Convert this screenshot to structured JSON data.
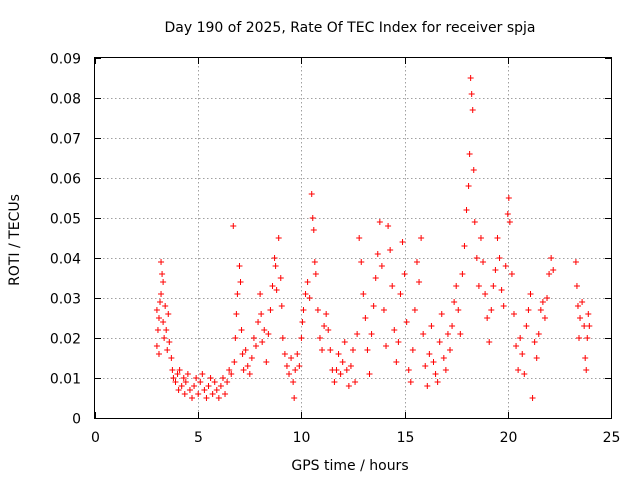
{
  "chart_data": {
    "type": "scatter",
    "title": "Day 190 of 2025, Rate Of TEC Index for receiver spja",
    "xlabel": "GPS time / hours",
    "ylabel": "ROTI / TECUs",
    "xlim": [
      0,
      25
    ],
    "ylim": [
      0,
      0.09
    ],
    "xticks": [
      "0",
      "5",
      "10",
      "15",
      "20",
      "25"
    ],
    "yticks": [
      "0",
      "0.01",
      "0.02",
      "0.03",
      "0.04",
      "0.05",
      "0.06",
      "0.07",
      "0.08",
      "0.09"
    ],
    "grid": true,
    "marker": "+",
    "color": "#ff0000",
    "points": [
      [
        3.0,
        0.027
      ],
      [
        3.0,
        0.018
      ],
      [
        3.05,
        0.022
      ],
      [
        3.1,
        0.025
      ],
      [
        3.1,
        0.016
      ],
      [
        3.15,
        0.029
      ],
      [
        3.2,
        0.031
      ],
      [
        3.2,
        0.039
      ],
      [
        3.25,
        0.036
      ],
      [
        3.3,
        0.034
      ],
      [
        3.3,
        0.024
      ],
      [
        3.35,
        0.02
      ],
      [
        3.4,
        0.028
      ],
      [
        3.45,
        0.022
      ],
      [
        3.5,
        0.017
      ],
      [
        3.55,
        0.026
      ],
      [
        3.6,
        0.019
      ],
      [
        3.7,
        0.015
      ],
      [
        3.75,
        0.012
      ],
      [
        3.8,
        0.01
      ],
      [
        3.9,
        0.009
      ],
      [
        4.0,
        0.011
      ],
      [
        4.05,
        0.007
      ],
      [
        4.1,
        0.012
      ],
      [
        4.2,
        0.008
      ],
      [
        4.3,
        0.01
      ],
      [
        4.35,
        0.006
      ],
      [
        4.4,
        0.009
      ],
      [
        4.5,
        0.011
      ],
      [
        4.6,
        0.007
      ],
      [
        4.7,
        0.005
      ],
      [
        4.8,
        0.008
      ],
      [
        4.9,
        0.01
      ],
      [
        5.0,
        0.006
      ],
      [
        5.1,
        0.009
      ],
      [
        5.2,
        0.011
      ],
      [
        5.3,
        0.007
      ],
      [
        5.4,
        0.005
      ],
      [
        5.5,
        0.008
      ],
      [
        5.6,
        0.01
      ],
      [
        5.7,
        0.006
      ],
      [
        5.8,
        0.009
      ],
      [
        5.9,
        0.007
      ],
      [
        6.0,
        0.005
      ],
      [
        6.1,
        0.008
      ],
      [
        6.2,
        0.01
      ],
      [
        6.3,
        0.006
      ],
      [
        6.4,
        0.009
      ],
      [
        6.5,
        0.012
      ],
      [
        6.6,
        0.011
      ],
      [
        6.7,
        0.048
      ],
      [
        6.75,
        0.014
      ],
      [
        6.8,
        0.02
      ],
      [
        6.85,
        0.026
      ],
      [
        6.9,
        0.031
      ],
      [
        7.0,
        0.038
      ],
      [
        7.05,
        0.034
      ],
      [
        7.1,
        0.022
      ],
      [
        7.15,
        0.016
      ],
      [
        7.2,
        0.012
      ],
      [
        7.3,
        0.017
      ],
      [
        7.4,
        0.013
      ],
      [
        7.5,
        0.011
      ],
      [
        7.6,
        0.015
      ],
      [
        7.7,
        0.02
      ],
      [
        7.8,
        0.018
      ],
      [
        7.9,
        0.024
      ],
      [
        8.0,
        0.031
      ],
      [
        8.05,
        0.026
      ],
      [
        8.1,
        0.019
      ],
      [
        8.2,
        0.022
      ],
      [
        8.3,
        0.014
      ],
      [
        8.4,
        0.021
      ],
      [
        8.5,
        0.027
      ],
      [
        8.6,
        0.033
      ],
      [
        8.7,
        0.04
      ],
      [
        8.75,
        0.038
      ],
      [
        8.8,
        0.032
      ],
      [
        8.9,
        0.045
      ],
      [
        9.0,
        0.035
      ],
      [
        9.05,
        0.028
      ],
      [
        9.1,
        0.02
      ],
      [
        9.2,
        0.016
      ],
      [
        9.3,
        0.013
      ],
      [
        9.4,
        0.011
      ],
      [
        9.5,
        0.015
      ],
      [
        9.6,
        0.009
      ],
      [
        9.65,
        0.005
      ],
      [
        9.7,
        0.012
      ],
      [
        9.8,
        0.016
      ],
      [
        9.9,
        0.013
      ],
      [
        10.0,
        0.02
      ],
      [
        10.05,
        0.024
      ],
      [
        10.1,
        0.027
      ],
      [
        10.2,
        0.031
      ],
      [
        10.3,
        0.034
      ],
      [
        10.4,
        0.03
      ],
      [
        10.5,
        0.056
      ],
      [
        10.55,
        0.05
      ],
      [
        10.6,
        0.047
      ],
      [
        10.65,
        0.039
      ],
      [
        10.7,
        0.036
      ],
      [
        10.8,
        0.027
      ],
      [
        10.9,
        0.02
      ],
      [
        11.0,
        0.017
      ],
      [
        11.1,
        0.023
      ],
      [
        11.2,
        0.026
      ],
      [
        11.3,
        0.022
      ],
      [
        11.4,
        0.017
      ],
      [
        11.5,
        0.012
      ],
      [
        11.6,
        0.009
      ],
      [
        11.7,
        0.012
      ],
      [
        11.8,
        0.016
      ],
      [
        11.9,
        0.011
      ],
      [
        12.0,
        0.014
      ],
      [
        12.1,
        0.019
      ],
      [
        12.2,
        0.012
      ],
      [
        12.3,
        0.008
      ],
      [
        12.4,
        0.013
      ],
      [
        12.5,
        0.017
      ],
      [
        12.6,
        0.009
      ],
      [
        12.7,
        0.021
      ],
      [
        12.8,
        0.045
      ],
      [
        12.9,
        0.039
      ],
      [
        13.0,
        0.031
      ],
      [
        13.1,
        0.025
      ],
      [
        13.2,
        0.017
      ],
      [
        13.3,
        0.011
      ],
      [
        13.4,
        0.021
      ],
      [
        13.5,
        0.028
      ],
      [
        13.6,
        0.035
      ],
      [
        13.7,
        0.041
      ],
      [
        13.8,
        0.049
      ],
      [
        13.9,
        0.038
      ],
      [
        14.0,
        0.027
      ],
      [
        14.1,
        0.018
      ],
      [
        14.2,
        0.048
      ],
      [
        14.3,
        0.042
      ],
      [
        14.4,
        0.033
      ],
      [
        14.5,
        0.022
      ],
      [
        14.6,
        0.014
      ],
      [
        14.7,
        0.019
      ],
      [
        14.8,
        0.031
      ],
      [
        14.9,
        0.044
      ],
      [
        15.0,
        0.036
      ],
      [
        15.1,
        0.024
      ],
      [
        15.2,
        0.012
      ],
      [
        15.3,
        0.009
      ],
      [
        15.4,
        0.017
      ],
      [
        15.5,
        0.027
      ],
      [
        15.6,
        0.039
      ],
      [
        15.7,
        0.034
      ],
      [
        15.8,
        0.045
      ],
      [
        15.9,
        0.021
      ],
      [
        16.0,
        0.013
      ],
      [
        16.1,
        0.008
      ],
      [
        16.2,
        0.016
      ],
      [
        16.3,
        0.023
      ],
      [
        16.4,
        0.014
      ],
      [
        16.5,
        0.011
      ],
      [
        16.6,
        0.009
      ],
      [
        16.7,
        0.019
      ],
      [
        16.8,
        0.026
      ],
      [
        16.9,
        0.015
      ],
      [
        17.0,
        0.012
      ],
      [
        17.1,
        0.021
      ],
      [
        17.2,
        0.017
      ],
      [
        17.3,
        0.023
      ],
      [
        17.4,
        0.029
      ],
      [
        17.5,
        0.033
      ],
      [
        17.6,
        0.027
      ],
      [
        17.7,
        0.021
      ],
      [
        17.8,
        0.036
      ],
      [
        17.9,
        0.043
      ],
      [
        18.0,
        0.052
      ],
      [
        18.1,
        0.058
      ],
      [
        18.15,
        0.066
      ],
      [
        18.2,
        0.085
      ],
      [
        18.25,
        0.081
      ],
      [
        18.3,
        0.077
      ],
      [
        18.35,
        0.062
      ],
      [
        18.4,
        0.049
      ],
      [
        18.5,
        0.04
      ],
      [
        18.6,
        0.033
      ],
      [
        18.7,
        0.045
      ],
      [
        18.8,
        0.039
      ],
      [
        18.9,
        0.031
      ],
      [
        19.0,
        0.025
      ],
      [
        19.1,
        0.019
      ],
      [
        19.2,
        0.027
      ],
      [
        19.3,
        0.033
      ],
      [
        19.4,
        0.037
      ],
      [
        19.5,
        0.045
      ],
      [
        19.6,
        0.04
      ],
      [
        19.7,
        0.032
      ],
      [
        19.8,
        0.028
      ],
      [
        19.9,
        0.038
      ],
      [
        20.0,
        0.051
      ],
      [
        20.05,
        0.055
      ],
      [
        20.1,
        0.049
      ],
      [
        20.2,
        0.036
      ],
      [
        20.3,
        0.026
      ],
      [
        20.4,
        0.018
      ],
      [
        20.5,
        0.012
      ],
      [
        20.6,
        0.02
      ],
      [
        20.7,
        0.016
      ],
      [
        20.8,
        0.011
      ],
      [
        20.9,
        0.023
      ],
      [
        21.0,
        0.027
      ],
      [
        21.1,
        0.031
      ],
      [
        21.2,
        0.005
      ],
      [
        21.3,
        0.019
      ],
      [
        21.4,
        0.015
      ],
      [
        21.5,
        0.021
      ],
      [
        21.6,
        0.027
      ],
      [
        21.7,
        0.029
      ],
      [
        21.8,
        0.025
      ],
      [
        21.9,
        0.03
      ],
      [
        22.0,
        0.036
      ],
      [
        22.1,
        0.04
      ],
      [
        22.2,
        0.037
      ],
      [
        23.3,
        0.039
      ],
      [
        23.35,
        0.033
      ],
      [
        23.4,
        0.028
      ],
      [
        23.45,
        0.02
      ],
      [
        23.5,
        0.025
      ],
      [
        23.6,
        0.029
      ],
      [
        23.7,
        0.023
      ],
      [
        23.75,
        0.015
      ],
      [
        23.8,
        0.012
      ],
      [
        23.85,
        0.02
      ],
      [
        23.9,
        0.026
      ],
      [
        23.95,
        0.023
      ]
    ]
  }
}
